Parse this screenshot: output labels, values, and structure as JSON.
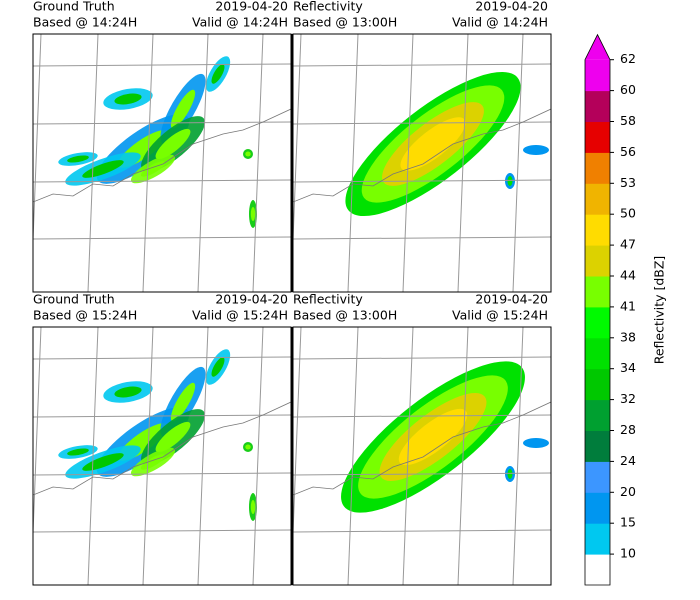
{
  "panels": [
    {
      "kind": "truth",
      "left": [
        "Ground Truth",
        "Based @ 14:24H"
      ],
      "right": [
        "2019-04-20",
        "Valid @ 14:24H"
      ]
    },
    {
      "kind": "forecast",
      "left": [
        "Reflectivity",
        "Based @ 13:00H"
      ],
      "right": [
        "2019-04-20",
        "Valid @ 14:24H"
      ]
    },
    {
      "kind": "truth",
      "left": [
        "Ground Truth",
        "Based @ 15:24H"
      ],
      "right": [
        "2019-04-20",
        "Valid @ 15:24H"
      ]
    },
    {
      "kind": "forecast",
      "left": [
        "Reflectivity",
        "Based @ 13:00H"
      ],
      "right": [
        "2019-04-20",
        "Valid @ 15:24H"
      ]
    }
  ],
  "colorbar": {
    "label": "Reflectivity [dBZ]",
    "ticks": [
      10,
      15,
      20,
      24,
      28,
      32,
      34,
      38,
      41,
      44,
      47,
      50,
      53,
      56,
      58,
      60,
      62
    ],
    "colors": [
      "#ffffff",
      "#00c8f0",
      "#0096f0",
      "#3c96ff",
      "#007d3c",
      "#00a030",
      "#00c800",
      "#00e100",
      "#00fa00",
      "#78ff00",
      "#dcd200",
      "#ffdc00",
      "#f0b400",
      "#f08000",
      "#e60000",
      "#b4005a",
      "#ee00ee",
      "#ee00ee"
    ]
  }
}
